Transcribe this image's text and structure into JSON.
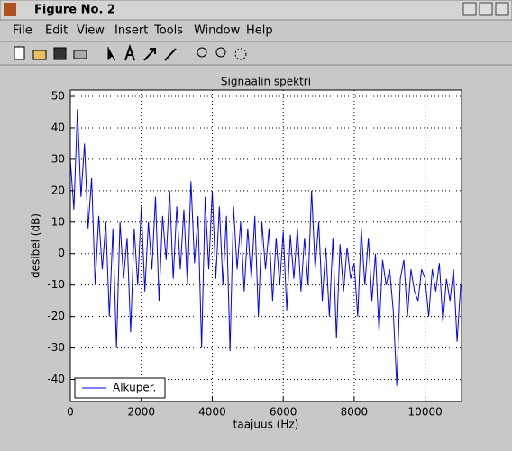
{
  "window": {
    "title": "Figure No. 2"
  },
  "menu": [
    "File",
    "Edit",
    "View",
    "Insert",
    "Tools",
    "Window",
    "Help"
  ],
  "chart_data": {
    "type": "line",
    "title": "Signaalin spektri",
    "x_label": "taajuus (Hz)",
    "y_label": "desibel (dB)",
    "x": [
      0,
      100,
      200,
      300,
      400,
      500,
      600,
      700,
      800,
      900,
      1000,
      1100,
      1200,
      1300,
      1400,
      1500,
      1600,
      1700,
      1800,
      1900,
      2000,
      2100,
      2200,
      2300,
      2400,
      2500,
      2600,
      2700,
      2800,
      2900,
      3000,
      3100,
      3200,
      3300,
      3400,
      3500,
      3600,
      3700,
      3800,
      3900,
      4000,
      4100,
      4200,
      4300,
      4400,
      4500,
      4600,
      4700,
      4800,
      4900,
      5000,
      5100,
      5200,
      5300,
      5400,
      5500,
      5600,
      5700,
      5800,
      5900,
      6000,
      6100,
      6200,
      6300,
      6400,
      6500,
      6600,
      6700,
      6800,
      6900,
      7000,
      7100,
      7200,
      7300,
      7400,
      7500,
      7600,
      7700,
      7800,
      7900,
      8000,
      8100,
      8200,
      8300,
      8400,
      8500,
      8600,
      8700,
      8800,
      8900,
      9000,
      9100,
      9200,
      9300,
      9400,
      9500,
      9600,
      9700,
      9800,
      9900,
      10000,
      10100,
      10200,
      10300,
      10400,
      10500,
      10600,
      10700,
      10800,
      10900,
      11000
    ],
    "series": [
      {
        "name": "Alkuper.",
        "color": "#0000ff",
        "values": [
          30,
          14,
          46,
          18,
          35,
          8,
          24,
          -10,
          12,
          -5,
          10,
          -20,
          8,
          -30,
          10,
          -8,
          5,
          -25,
          8,
          -10,
          15,
          -12,
          10,
          -5,
          18,
          -15,
          12,
          -2,
          20,
          -8,
          15,
          -5,
          14,
          -10,
          23,
          -3,
          12,
          -30,
          18,
          -5,
          20,
          -8,
          15,
          -10,
          12,
          -31,
          15,
          -5,
          10,
          -12,
          8,
          -8,
          12,
          -20,
          10,
          -5,
          8,
          -15,
          5,
          -10,
          7,
          -18,
          6,
          -8,
          8,
          -12,
          5,
          -10,
          20,
          -5,
          10,
          -15,
          2,
          -20,
          5,
          -27,
          3,
          -12,
          2,
          -8,
          -3,
          -20,
          8,
          -10,
          5,
          -15,
          0,
          -25,
          -2,
          -10,
          -5,
          -18,
          -42,
          -8,
          -2,
          -20,
          -5,
          -12,
          -15,
          -5,
          -8,
          -20,
          -5,
          -12,
          -3,
          -22,
          -8,
          -15,
          -5,
          -28,
          -10
        ]
      }
    ],
    "xlim": [
      0,
      11025
    ],
    "ylim": [
      -47,
      52
    ],
    "xticks": [
      0,
      2000,
      4000,
      6000,
      8000,
      10000
    ],
    "yticks": [
      -40,
      -30,
      -20,
      -10,
      0,
      10,
      20,
      30,
      40,
      50
    ],
    "grid": true,
    "legend": "lower left"
  }
}
